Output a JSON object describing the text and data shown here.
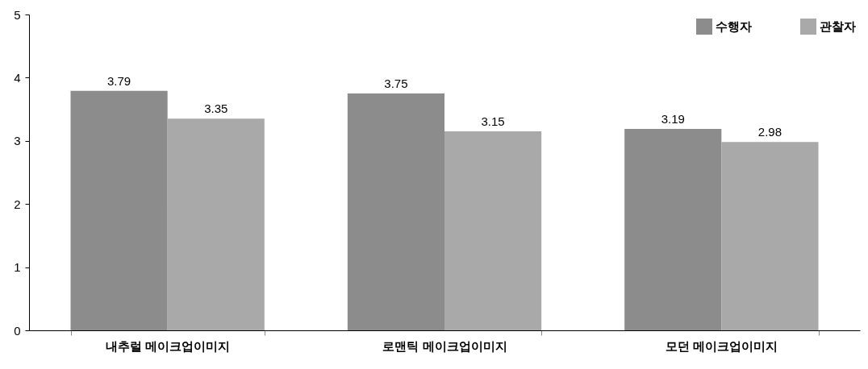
{
  "chart_data": {
    "type": "bar",
    "categories": [
      "내추럴 메이크업이미지",
      "로맨틱 메이크업이미지",
      "모던 메이크업이미지"
    ],
    "series": [
      {
        "name": "수행자",
        "color": "#8c8c8c",
        "values": [
          3.79,
          3.75,
          3.19
        ]
      },
      {
        "name": "관찰자",
        "color": "#a9a9a9",
        "values": [
          3.35,
          3.15,
          2.98
        ]
      }
    ],
    "ylim": [
      0,
      5
    ],
    "yticks": [
      0,
      1,
      2,
      3,
      4,
      5
    ],
    "grid": false,
    "legend": "top right",
    "data_labels": true
  }
}
